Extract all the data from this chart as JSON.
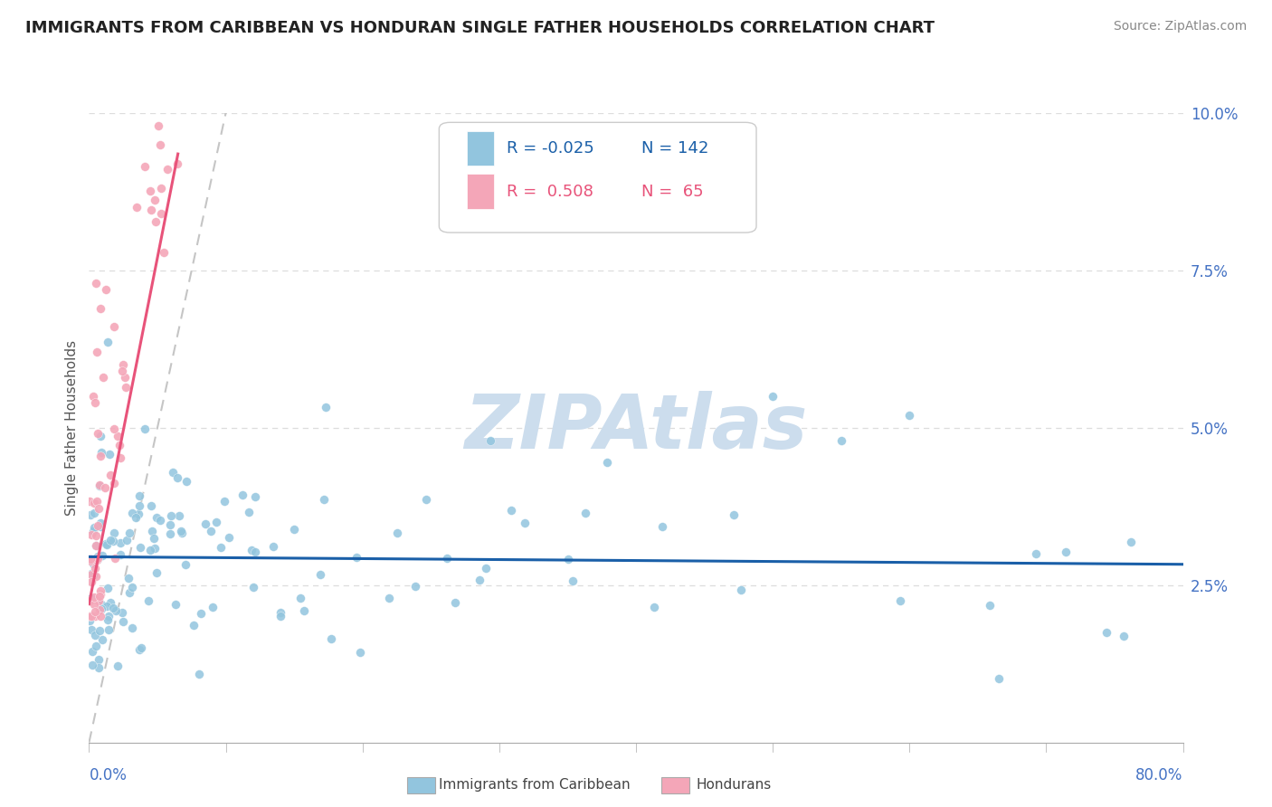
{
  "title": "IMMIGRANTS FROM CARIBBEAN VS HONDURAN SINGLE FATHER HOUSEHOLDS CORRELATION CHART",
  "source": "Source: ZipAtlas.com",
  "ylabel": "Single Father Households",
  "xmin": 0.0,
  "xmax": 0.8,
  "ymin": 0.0,
  "ymax": 0.1,
  "yticks": [
    0.025,
    0.05,
    0.075,
    0.1
  ],
  "ytick_labels": [
    "2.5%",
    "5.0%",
    "7.5%",
    "10.0%"
  ],
  "legend_r1_val": "-0.025",
  "legend_n1_val": "142",
  "legend_r2_val": "0.508",
  "legend_n2_val": "65",
  "color_blue": "#92c5de",
  "color_pink": "#f4a6b8",
  "color_blue_line": "#1a5fa8",
  "color_pink_line": "#e8537a",
  "color_diagonal": "#bbbbbb",
  "color_ytick": "#4472c4",
  "color_xtick": "#4472c4",
  "label_caribbean": "Immigrants from Caribbean",
  "label_hondurans": "Hondurans",
  "watermark": "ZIPAtlas",
  "watermark_color": "#ccdded",
  "watermark_fontsize": 60,
  "title_fontsize": 13,
  "source_fontsize": 10,
  "tick_fontsize": 12,
  "legend_fontsize": 13
}
